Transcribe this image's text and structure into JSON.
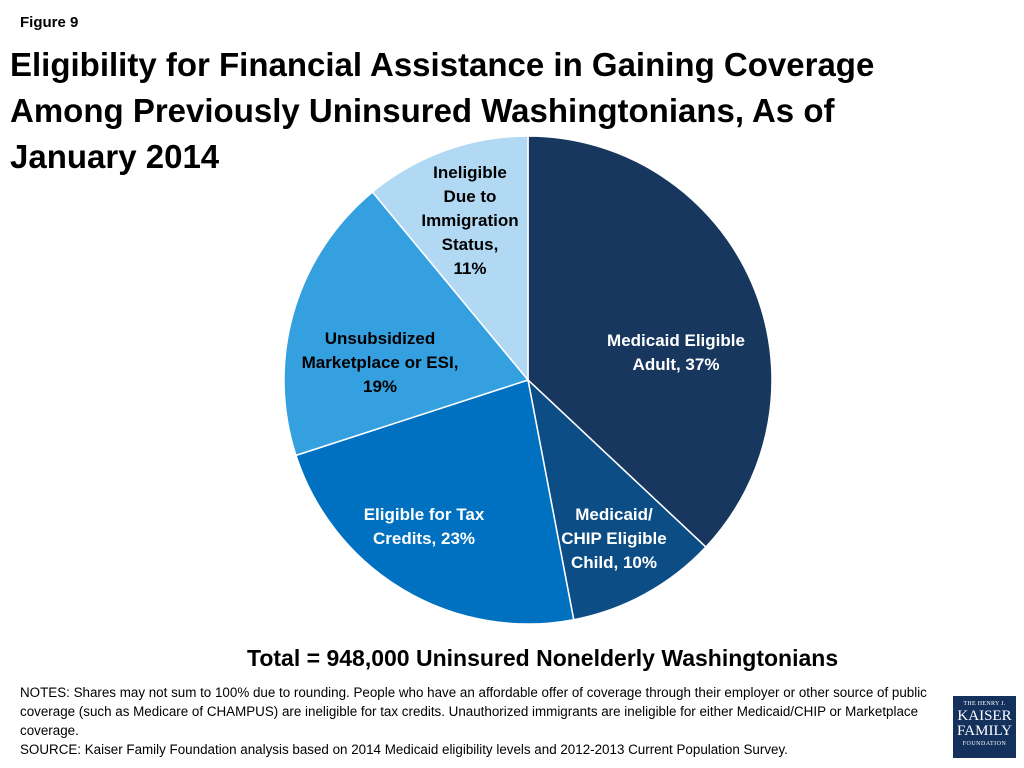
{
  "figure_label": "Figure 9",
  "title": "Eligibility for Financial Assistance in Gaining Coverage Among Previously Uninsured Washingtonians, As of January 2014",
  "total_text": "Total = 948,000 Uninsured Nonelderly Washingtonians",
  "notes": "NOTES: Shares may not sum to 100% due to rounding. People who have an affordable offer of coverage through their employer or other source of public coverage (such as Medicare of CHAMPUS) are ineligible for tax credits. Unauthorized immigrants are ineligible for either Medicaid/CHIP or Marketplace coverage.",
  "source": "SOURCE: Kaiser Family Foundation analysis based on 2014 Medicaid eligibility levels and 2012-2013 Current Population Survey.",
  "logo": {
    "line1": "THE HENRY J.",
    "line2": "KAISER",
    "line3": "FAMILY",
    "line4": "FOUNDATION"
  },
  "chart_data": {
    "type": "pie",
    "title": "Eligibility for Financial Assistance in Gaining Coverage Among Previously Uninsured Washingtonians, As of January 2014",
    "start": "12 o'clock, clockwise",
    "slices": [
      {
        "label_lines": [
          "Medicaid Eligible",
          "Adult, 37%"
        ],
        "value": 37,
        "color": "#17375e",
        "text_color": "#ffffff"
      },
      {
        "label_lines": [
          "Medicaid/",
          "CHIP Eligible",
          "Child, 10%"
        ],
        "value": 10,
        "color": "#0c4d85",
        "text_color": "#ffffff"
      },
      {
        "label_lines": [
          "Eligible for Tax",
          "Credits, 23%"
        ],
        "value": 23,
        "color": "#0070c0",
        "text_color": "#ffffff"
      },
      {
        "label_lines": [
          "Unsubsidized",
          "Marketplace or ESI,",
          "19%"
        ],
        "value": 19,
        "color": "#35a0e0",
        "text_color": "#000000"
      },
      {
        "label_lines": [
          "Ineligible",
          "Due to",
          "Immigration",
          "Status,",
          "11%"
        ],
        "value": 11,
        "color": "#b2d9f4",
        "text_color": "#000000"
      }
    ]
  }
}
